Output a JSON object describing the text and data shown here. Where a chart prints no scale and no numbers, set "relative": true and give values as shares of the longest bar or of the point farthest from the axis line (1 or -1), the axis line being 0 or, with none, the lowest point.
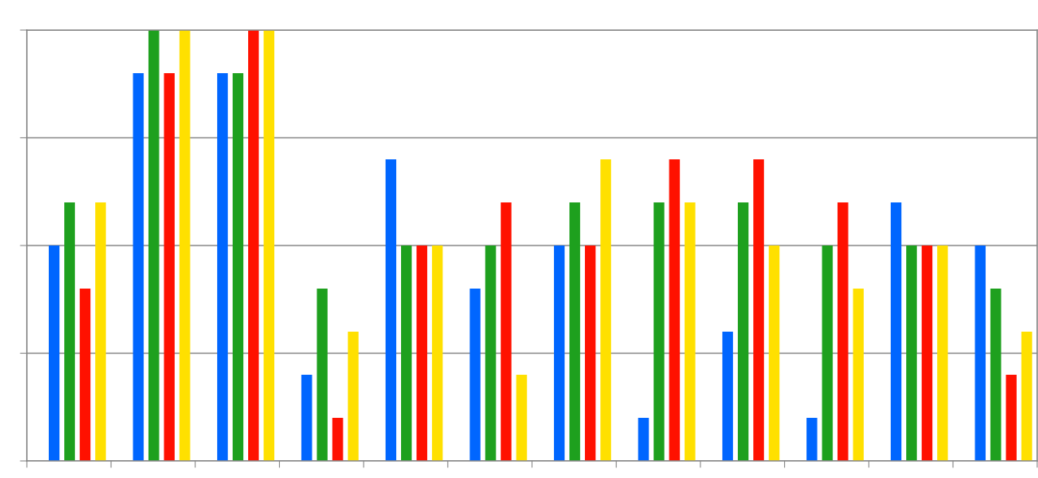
{
  "chart_data": {
    "type": "bar",
    "relative": true,
    "grid": "y",
    "legend": false,
    "categories": [
      null,
      null,
      null,
      null,
      null,
      null,
      null,
      null,
      null,
      null,
      null,
      null
    ],
    "series": [
      {
        "color": "#0066ff",
        "values": [
          0.5,
          0.9,
          0.9,
          0.2,
          0.7,
          0.4,
          0.5,
          0.1,
          0.3,
          0.1,
          0.6,
          0.5
        ]
      },
      {
        "color": "#1ea01e",
        "values": [
          0.6,
          1.0,
          0.9,
          0.4,
          0.5,
          0.5,
          0.6,
          0.6,
          0.6,
          0.5,
          0.5,
          0.4
        ]
      },
      {
        "color": "#ff1100",
        "values": [
          0.4,
          0.9,
          1.0,
          0.1,
          0.5,
          0.6,
          0.5,
          0.7,
          0.7,
          0.6,
          0.5,
          0.2
        ]
      },
      {
        "color": "#ffe000",
        "values": [
          0.6,
          1.0,
          1.0,
          0.3,
          0.5,
          0.2,
          0.7,
          0.6,
          0.5,
          0.4,
          0.5,
          0.3
        ]
      }
    ]
  }
}
